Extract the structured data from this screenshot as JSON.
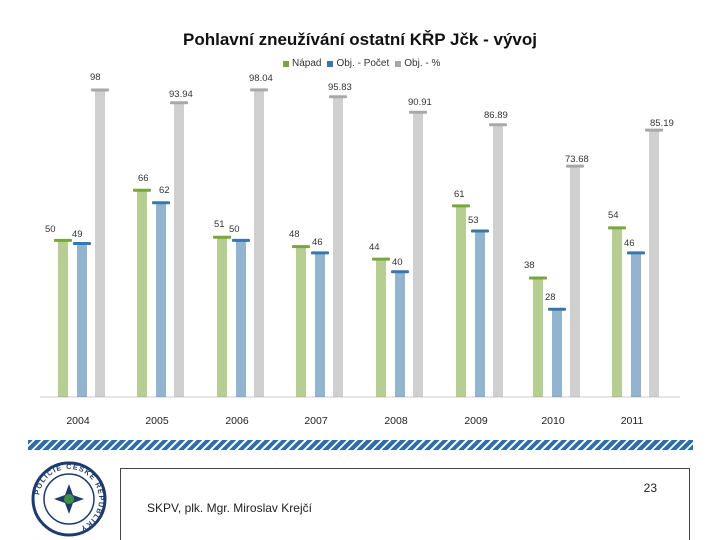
{
  "chart_data": {
    "type": "bar",
    "title": "Pohlavní zneužívání ostatní KŘP Jčk - vývoj",
    "categories": [
      "2004",
      "2005",
      "2006",
      "2007",
      "2008",
      "2009",
      "2010",
      "2011"
    ],
    "series": [
      {
        "name": "Nápad",
        "values": [
          50,
          66,
          51,
          48,
          44,
          61,
          38,
          54
        ],
        "color": "#7aa63a"
      },
      {
        "name": "Obj. - Počet",
        "values": [
          49,
          62,
          50,
          46,
          40,
          53,
          28,
          46
        ],
        "color": "#3a76a8"
      },
      {
        "name": "Obj. - %",
        "values": [
          98,
          93.94,
          98.04,
          95.83,
          90.91,
          86.89,
          73.68,
          85.19
        ],
        "color": "#a8a8a8"
      }
    ],
    "labels": [
      [
        "50",
        "66",
        "51",
        "48",
        "44",
        "61",
        "38",
        "54"
      ],
      [
        "49",
        "62",
        "50",
        "46",
        "40",
        "53",
        "28",
        "46"
      ],
      [
        "98",
        "93.94",
        "98.04",
        "95.83",
        "90.91",
        "86.89",
        "73.68",
        "85.19"
      ]
    ],
    "legend_position": "top-center",
    "grid": false
  },
  "footer": {
    "page_number": "23",
    "author": "SKPV, plk. Mgr. Miroslav Krejčí"
  },
  "logo": {
    "text": "POLICIE ČESKÉ REPUBLIKY"
  },
  "colors": {
    "accent_stripe": "#2f6ea8"
  }
}
